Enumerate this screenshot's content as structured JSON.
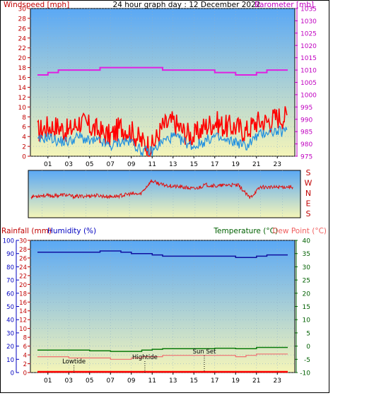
{
  "title": "24 hour graph day : 12 December 2022",
  "colors": {
    "wind": "#ff0000",
    "gust": "#ff0000",
    "avg": "#1e8fe0",
    "baro": "#e020e0",
    "dir": "#e01010",
    "humidity": "#1010a0",
    "temperature": "#0a7a0a",
    "dewpoint": "#f07070",
    "rain": "#ff0000",
    "axisRed": "#c00000",
    "axisBlue": "#0000c0",
    "axisGreen": "#006000",
    "axisMagenta": "#c000c0"
  },
  "x_ticks": [
    "01",
    "03",
    "05",
    "07",
    "09",
    "11",
    "13",
    "15",
    "17",
    "19",
    "21",
    "23"
  ],
  "chart_data": [
    {
      "type": "line",
      "name": "wind-baro",
      "left_label": "Windspeed [mph]",
      "right_label": "Barometer [mb]",
      "left_ticks": [
        0,
        2,
        4,
        6,
        8,
        10,
        12,
        14,
        16,
        18,
        20,
        22,
        24,
        26,
        28,
        30
      ],
      "right_ticks": [
        975,
        980,
        985,
        990,
        995,
        1000,
        1005,
        1010,
        1015,
        1020,
        1025,
        1030,
        1035
      ],
      "ylim_left": [
        0,
        30
      ],
      "ylim_right": [
        975,
        1035
      ],
      "x_hours": [
        0,
        1,
        2,
        3,
        4,
        5,
        6,
        7,
        8,
        9,
        10,
        11,
        12,
        13,
        14,
        15,
        16,
        17,
        18,
        19,
        20,
        21,
        22,
        23,
        24
      ],
      "gust": [
        5,
        6,
        6,
        5,
        7,
        6,
        5,
        4,
        6,
        5,
        3,
        2,
        6,
        7,
        5,
        4,
        6,
        7,
        6,
        6,
        5,
        7,
        7,
        8,
        8
      ],
      "avg": [
        3,
        4,
        3,
        3,
        4,
        3,
        3,
        2,
        3,
        3,
        1,
        1,
        3,
        4,
        3,
        2,
        3,
        4,
        3,
        3,
        2,
        4,
        5,
        5,
        5
      ],
      "baro_series": [
        1008,
        1009,
        1010,
        1010,
        1010,
        1010,
        1011,
        1011,
        1011,
        1011,
        1011,
        1011,
        1010,
        1010,
        1010,
        1010,
        1010,
        1009,
        1009,
        1008,
        1008,
        1009,
        1010,
        1010,
        1010
      ]
    },
    {
      "type": "line",
      "name": "wind-direction",
      "right_labels": [
        "S",
        "E",
        "N",
        "W",
        "S"
      ],
      "ylim": [
        0,
        360
      ],
      "x_hours": [
        0,
        1,
        2,
        3,
        4,
        5,
        6,
        7,
        8,
        9,
        10,
        11,
        12,
        13,
        14,
        15,
        16,
        17,
        18,
        19,
        20,
        21,
        22,
        23,
        24
      ],
      "values": [
        160,
        170,
        165,
        175,
        160,
        165,
        170,
        160,
        165,
        180,
        180,
        280,
        250,
        240,
        230,
        220,
        250,
        240,
        250,
        245,
        150,
        235,
        230,
        235,
        235
      ]
    },
    {
      "type": "line",
      "name": "rain-humidity-temp",
      "left_label_a": "Rainfall (mm)",
      "left_label_b": "Humidity (%)",
      "right_label_a": "Temperature (°C)",
      "right_label_b": "Dew Point (°C)",
      "rain_ticks": [
        0,
        2,
        4,
        6,
        8,
        10,
        12,
        14,
        16,
        18,
        20,
        22,
        24,
        26,
        28,
        30
      ],
      "humidity_ticks": [
        0,
        10,
        20,
        30,
        40,
        50,
        60,
        70,
        80,
        90,
        100
      ],
      "temp_ticks": [
        -10,
        -5,
        0,
        5,
        10,
        15,
        20,
        25,
        30,
        35,
        40
      ],
      "ylim_humidity": [
        0,
        100
      ],
      "ylim_temp": [
        -10,
        40
      ],
      "x_hours": [
        0,
        1,
        2,
        3,
        4,
        5,
        6,
        7,
        8,
        9,
        10,
        11,
        12,
        13,
        14,
        15,
        16,
        17,
        18,
        19,
        20,
        21,
        22,
        23,
        24
      ],
      "humidity": [
        91,
        91,
        91,
        91,
        91,
        91,
        92,
        92,
        91,
        90,
        90,
        89,
        88,
        88,
        88,
        88,
        88,
        88,
        88,
        87,
        87,
        88,
        89,
        89,
        89
      ],
      "temperature": [
        -1.5,
        -1.5,
        -1.5,
        -1.5,
        -1.5,
        -1.8,
        -1.8,
        -2,
        -2,
        -2,
        -1.5,
        -1.2,
        -1,
        -1,
        -1,
        -1,
        -1,
        -0.8,
        -0.8,
        -1,
        -1,
        -0.5,
        -0.5,
        -0.5,
        -1
      ],
      "dewpoint": [
        -4,
        -4,
        -4,
        -4.5,
        -4.5,
        -4.5,
        -4.5,
        -5,
        -5,
        -4.5,
        -4,
        -4,
        -3.5,
        -3.5,
        -3.5,
        -3.5,
        -3.5,
        -3.5,
        -3.5,
        -4,
        -3.5,
        -3,
        -3,
        -3,
        -3.5
      ],
      "rain": [
        0,
        0,
        0,
        0,
        0,
        0,
        0,
        0,
        0,
        0,
        0,
        0,
        0,
        0,
        0,
        0,
        0,
        0,
        0,
        0,
        0,
        0,
        0,
        0,
        0
      ],
      "annotations": [
        {
          "label": "Lowtide",
          "hour": 3.5
        },
        {
          "label": "Hightide",
          "hour": 10.3
        },
        {
          "label": "Sun Set",
          "hour": 16
        }
      ]
    }
  ]
}
